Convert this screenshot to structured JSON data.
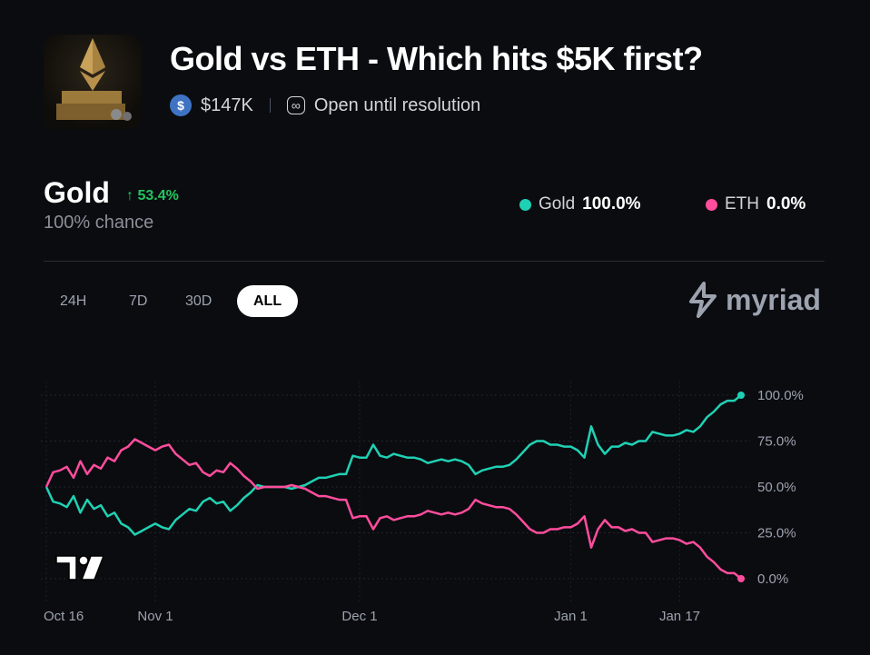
{
  "market": {
    "title": "Gold vs ETH - Which hits $5K first?",
    "volume": "$147K",
    "status": "Open until resolution",
    "icons": {
      "currency": "usdc-icon",
      "status": "infinity-icon"
    }
  },
  "leader": {
    "name": "Gold",
    "change": "↑ 53.4%",
    "chance": "100% chance"
  },
  "legend": [
    {
      "name": "Gold",
      "value": "100.0%",
      "color": "#1fd1b4"
    },
    {
      "name": "ETH",
      "value": "0.0%",
      "color": "#ff4d9d"
    }
  ],
  "ranges": [
    {
      "label": "24H",
      "active": false
    },
    {
      "label": "7D",
      "active": false
    },
    {
      "label": "30D",
      "active": false
    },
    {
      "label": "ALL",
      "active": true
    }
  ],
  "brand": "myriad",
  "chart_data": {
    "type": "line",
    "x_range": [
      "Oct 16",
      "Jan 26"
    ],
    "x_interval": "daily",
    "x_ticks": [
      "Oct 16",
      "Nov 1",
      "Dec 1",
      "Jan 1",
      "Jan 17"
    ],
    "y_ticks": [
      "100.0%",
      "75.0%",
      "50.0%",
      "25.0%",
      "0.0%"
    ],
    "ylim": [
      0,
      100
    ],
    "grid": true,
    "series": [
      {
        "name": "Gold",
        "color": "#1fd1b4",
        "values": [
          50,
          42,
          41,
          39,
          45,
          36,
          43,
          38,
          40,
          34,
          36,
          30,
          28,
          24,
          26,
          28,
          30,
          28,
          27,
          32,
          35,
          38,
          37,
          42,
          44,
          41,
          42,
          37,
          40,
          44,
          47,
          51,
          50,
          50,
          50,
          50,
          49,
          50,
          51,
          53,
          55,
          55,
          56,
          57,
          57,
          67,
          66,
          66,
          73,
          67,
          66,
          68,
          67,
          66,
          66,
          65,
          63,
          64,
          65,
          64,
          65,
          64,
          62,
          57,
          59,
          60,
          61,
          61,
          62,
          65,
          69,
          73,
          75,
          75,
          73,
          73,
          72,
          72,
          70,
          66,
          83,
          73,
          68,
          72,
          72,
          74,
          73,
          75,
          75,
          80,
          79,
          78,
          78,
          79,
          81,
          80,
          83,
          88,
          91,
          95,
          97,
          97,
          100
        ]
      },
      {
        "name": "ETH",
        "color": "#ff4d9d",
        "values": [
          50,
          58,
          59,
          61,
          55,
          64,
          57,
          62,
          60,
          66,
          64,
          70,
          72,
          76,
          74,
          72,
          70,
          72,
          73,
          68,
          65,
          62,
          63,
          58,
          56,
          59,
          58,
          63,
          60,
          56,
          53,
          49,
          50,
          50,
          50,
          50,
          51,
          50,
          49,
          47,
          45,
          45,
          44,
          43,
          43,
          33,
          34,
          34,
          27,
          33,
          34,
          32,
          33,
          34,
          34,
          35,
          37,
          36,
          35,
          36,
          35,
          36,
          38,
          43,
          41,
          40,
          39,
          39,
          38,
          35,
          31,
          27,
          25,
          25,
          27,
          27,
          28,
          28,
          30,
          34,
          17,
          27,
          32,
          28,
          28,
          26,
          27,
          25,
          25,
          20,
          21,
          22,
          22,
          21,
          19,
          20,
          17,
          12,
          9,
          5,
          3,
          3,
          0
        ]
      }
    ]
  }
}
